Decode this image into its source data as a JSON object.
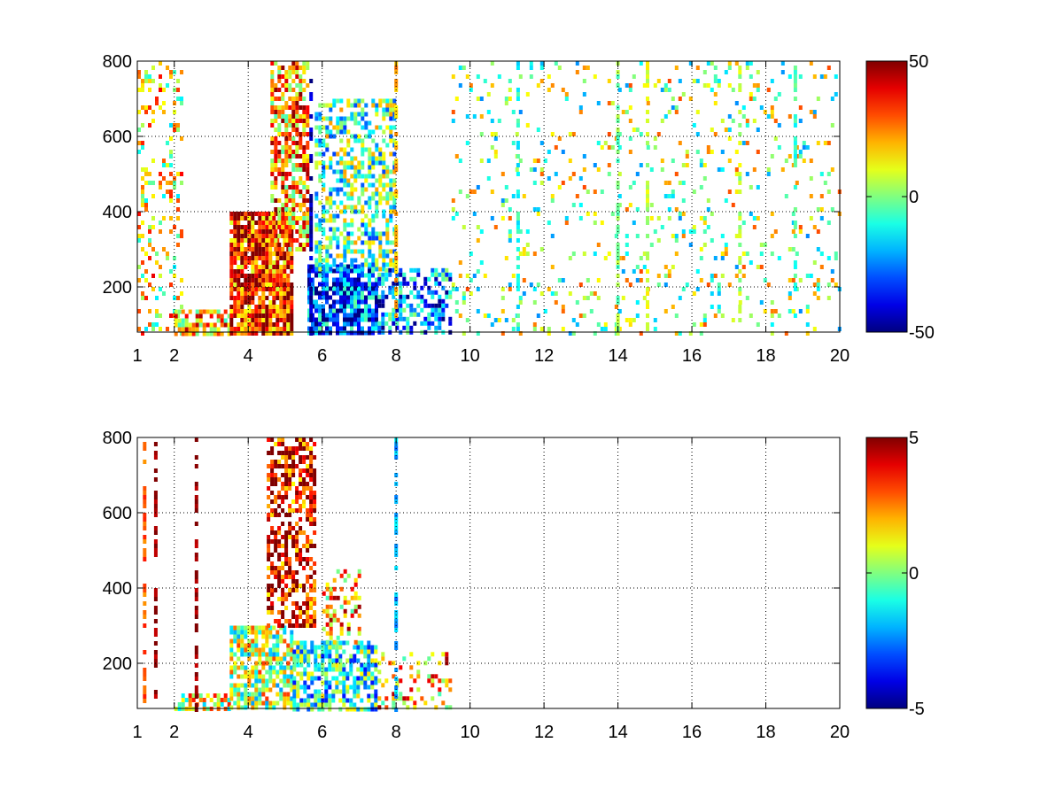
{
  "chart_data": [
    {
      "type": "heatmap",
      "title": "",
      "xlabel": "",
      "ylabel": "",
      "xlim": [
        1,
        20
      ],
      "ylim": [
        80,
        800
      ],
      "x_scale": "linear",
      "grid": true,
      "x_ticks": [
        1,
        2,
        4,
        6,
        8,
        10,
        12,
        14,
        16,
        18,
        20
      ],
      "x_tick_labels": [
        "1",
        "2",
        "4",
        "6",
        "8",
        "10",
        "12",
        "14",
        "16",
        "18",
        "20"
      ],
      "y_ticks": [
        200,
        400,
        600,
        800
      ],
      "y_tick_labels": [
        "200",
        "400",
        "600",
        "800"
      ],
      "colormap": "jet",
      "color_range": [
        -50,
        50
      ],
      "colorbar_ticks": [
        -50,
        0,
        50
      ],
      "colorbar_tick_labels": [
        "-50",
        "0",
        "50"
      ],
      "background_color": "#ffffff",
      "regions": [
        {
          "x": [
            1.0,
            2.2
          ],
          "y": [
            80,
            800
          ],
          "value": 12,
          "density": 0.22
        },
        {
          "x": [
            2.0,
            3.5
          ],
          "y": [
            80,
            140
          ],
          "value": 18,
          "density": 0.7
        },
        {
          "x": [
            3.5,
            5.2
          ],
          "y": [
            80,
            400
          ],
          "value": 35,
          "density": 0.9
        },
        {
          "x": [
            4.6,
            5.6
          ],
          "y": [
            300,
            800
          ],
          "value": 22,
          "density": 0.7
        },
        {
          "x": [
            5.6,
            7.5
          ],
          "y": [
            80,
            260
          ],
          "value": -30,
          "density": 0.85
        },
        {
          "x": [
            5.8,
            8.0
          ],
          "y": [
            250,
            700
          ],
          "value": -5,
          "density": 0.5
        },
        {
          "x": [
            7.5,
            9.5
          ],
          "y": [
            80,
            250
          ],
          "value": -25,
          "density": 0.55
        },
        {
          "x": [
            9.5,
            20.0
          ],
          "y": [
            80,
            800
          ],
          "value": 3,
          "density": 0.1
        }
      ],
      "stripes": [
        {
          "x": 5.7,
          "value": -45
        },
        {
          "x": 8.0,
          "value": 20
        },
        {
          "x": 11.3,
          "value": -10
        },
        {
          "x": 14.0,
          "value": 0
        },
        {
          "x": 14.8,
          "value": 8
        },
        {
          "x": 17.3,
          "value": 5
        },
        {
          "x": 18.8,
          "value": -8
        }
      ]
    },
    {
      "type": "heatmap",
      "title": "",
      "xlabel": "",
      "ylabel": "",
      "xlim": [
        1,
        20
      ],
      "ylim": [
        80,
        800
      ],
      "x_scale": "linear",
      "grid": true,
      "x_ticks": [
        1,
        2,
        4,
        6,
        8,
        10,
        12,
        14,
        16,
        18,
        20
      ],
      "x_tick_labels": [
        "1",
        "2",
        "4",
        "6",
        "8",
        "10",
        "12",
        "14",
        "16",
        "18",
        "20"
      ],
      "y_ticks": [
        200,
        400,
        600,
        800
      ],
      "y_tick_labels": [
        "200",
        "400",
        "600",
        "800"
      ],
      "colormap": "jet",
      "color_range": [
        -5,
        5
      ],
      "colorbar_ticks": [
        -5,
        0,
        5
      ],
      "colorbar_tick_labels": [
        "-5",
        "0",
        "5"
      ],
      "background_color": "#ffffff",
      "regions": [
        {
          "x": [
            2.0,
            3.5
          ],
          "y": [
            80,
            120
          ],
          "value": 1,
          "density": 0.6
        },
        {
          "x": [
            3.5,
            5.2
          ],
          "y": [
            80,
            300
          ],
          "value": 0.5,
          "density": 0.75
        },
        {
          "x": [
            4.5,
            5.8
          ],
          "y": [
            300,
            800
          ],
          "value": 4,
          "density": 0.55
        },
        {
          "x": [
            5.2,
            7.5
          ],
          "y": [
            80,
            260
          ],
          "value": -1,
          "density": 0.7
        },
        {
          "x": [
            6.0,
            7.0
          ],
          "y": [
            260,
            450
          ],
          "value": 2,
          "density": 0.35
        },
        {
          "x": [
            7.5,
            9.5
          ],
          "y": [
            80,
            230
          ],
          "value": 2,
          "density": 0.3
        }
      ],
      "stripes": [
        {
          "x": 1.2,
          "value": 3
        },
        {
          "x": 1.5,
          "value": 5
        },
        {
          "x": 2.6,
          "value": 5
        },
        {
          "x": 8.0,
          "value": -2
        }
      ]
    }
  ]
}
